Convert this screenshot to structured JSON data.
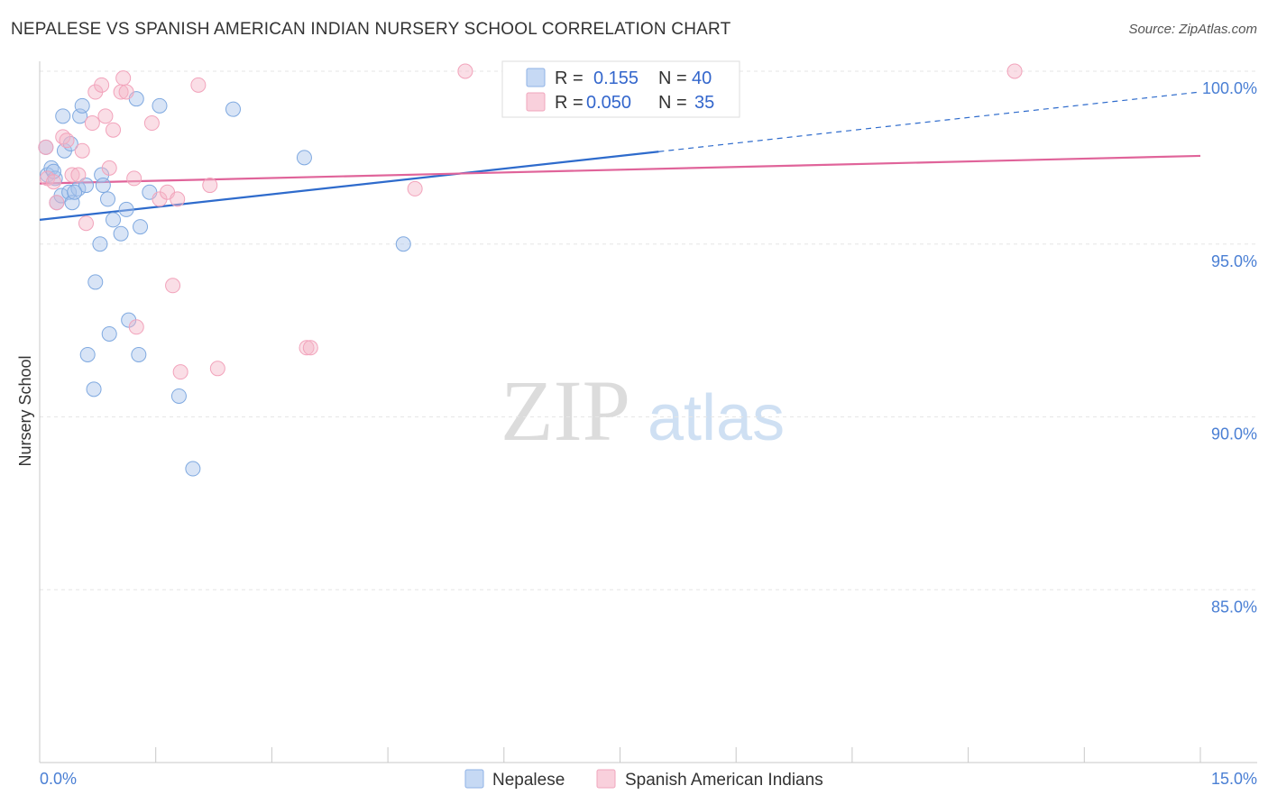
{
  "title": "NEPALESE VS SPANISH AMERICAN INDIAN NURSERY SCHOOL CORRELATION CHART",
  "source": "Source: ZipAtlas.com",
  "watermark": {
    "zip": "ZIP",
    "atlas": "atlas"
  },
  "legend": {
    "r_label": "R =",
    "n_label": "N =",
    "rows": [
      {
        "r": "0.155",
        "n": "40",
        "color": "#a8c4ec"
      },
      {
        "r": "0.050",
        "n": "35",
        "color": "#f4b6c8"
      }
    ]
  },
  "bottom_legend": [
    "Nepalese",
    "Spanish American Indians"
  ],
  "chart_data": {
    "type": "scatter",
    "title": "NEPALESE VS SPANISH AMERICAN INDIAN NURSERY SCHOOL CORRELATION CHART",
    "xlabel": "",
    "ylabel": "Nursery School",
    "xlim": [
      0,
      15
    ],
    "ylim": [
      80,
      100.5
    ],
    "x_tick_labels": [
      "0.0%",
      "15.0%"
    ],
    "y_ticks": [
      85,
      90,
      95,
      100
    ],
    "y_tick_labels": [
      "85.0%",
      "90.0%",
      "95.0%",
      "100.0%"
    ],
    "series": [
      {
        "name": "Nepalese",
        "color": "#7fa9e0",
        "line_color": "#2e6bcc",
        "trend": {
          "x0": 0,
          "y0": 95.7,
          "x_solid_end": 8.0,
          "x1": 15,
          "y1": 99.4
        },
        "points": [
          [
            0.08,
            97.8
          ],
          [
            0.1,
            97.0
          ],
          [
            0.15,
            97.2
          ],
          [
            0.2,
            96.9
          ],
          [
            0.22,
            96.2
          ],
          [
            0.28,
            96.4
          ],
          [
            0.3,
            98.7
          ],
          [
            0.32,
            97.7
          ],
          [
            0.38,
            96.5
          ],
          [
            0.4,
            97.9
          ],
          [
            0.42,
            96.2
          ],
          [
            0.5,
            96.6
          ],
          [
            0.52,
            98.7
          ],
          [
            0.55,
            99.0
          ],
          [
            0.6,
            96.7
          ],
          [
            0.62,
            91.8
          ],
          [
            0.7,
            90.8
          ],
          [
            0.72,
            93.9
          ],
          [
            0.78,
            95.0
          ],
          [
            0.8,
            97.0
          ],
          [
            0.82,
            96.7
          ],
          [
            0.88,
            96.3
          ],
          [
            0.9,
            92.4
          ],
          [
            0.95,
            95.7
          ],
          [
            1.05,
            95.3
          ],
          [
            1.12,
            96.0
          ],
          [
            1.15,
            92.8
          ],
          [
            1.25,
            99.2
          ],
          [
            1.28,
            91.8
          ],
          [
            1.3,
            95.5
          ],
          [
            1.42,
            96.5
          ],
          [
            1.55,
            99.0
          ],
          [
            1.8,
            90.6
          ],
          [
            1.98,
            88.5
          ],
          [
            2.5,
            98.9
          ],
          [
            3.42,
            97.5
          ],
          [
            4.7,
            95.0
          ],
          [
            7.6,
            99.4
          ],
          [
            0.18,
            97.1
          ],
          [
            0.45,
            96.5
          ]
        ]
      },
      {
        "name": "Spanish American Indians",
        "color": "#f2a3bb",
        "line_color": "#e0649a",
        "trend": {
          "x0": 0,
          "y0": 96.75,
          "x1": 15,
          "y1": 97.55
        },
        "points": [
          [
            0.08,
            97.8
          ],
          [
            0.1,
            96.9
          ],
          [
            0.18,
            96.8
          ],
          [
            0.22,
            96.2
          ],
          [
            0.3,
            98.1
          ],
          [
            0.35,
            98.0
          ],
          [
            0.42,
            97.0
          ],
          [
            0.5,
            97.0
          ],
          [
            0.55,
            97.7
          ],
          [
            0.6,
            95.6
          ],
          [
            0.68,
            98.5
          ],
          [
            0.72,
            99.4
          ],
          [
            0.8,
            99.6
          ],
          [
            0.85,
            98.7
          ],
          [
            0.9,
            97.2
          ],
          [
            0.95,
            98.3
          ],
          [
            1.05,
            99.4
          ],
          [
            1.08,
            99.8
          ],
          [
            1.12,
            99.4
          ],
          [
            1.22,
            96.9
          ],
          [
            1.25,
            92.6
          ],
          [
            1.45,
            98.5
          ],
          [
            1.55,
            96.3
          ],
          [
            1.65,
            96.5
          ],
          [
            1.72,
            93.8
          ],
          [
            1.78,
            96.3
          ],
          [
            1.82,
            91.3
          ],
          [
            2.05,
            99.6
          ],
          [
            2.2,
            96.7
          ],
          [
            2.3,
            91.4
          ],
          [
            3.45,
            92.0
          ],
          [
            3.5,
            92.0
          ],
          [
            4.85,
            96.6
          ],
          [
            5.5,
            100.0
          ],
          [
            12.6,
            100.0
          ]
        ]
      }
    ]
  }
}
